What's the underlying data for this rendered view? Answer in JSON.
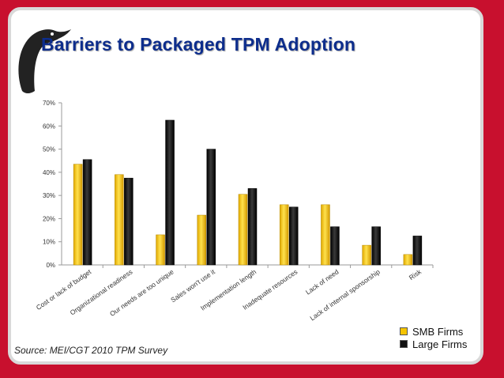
{
  "slide": {
    "title": "Barriers to Packaged TPM Adoption",
    "source": "Source:  MEI/CGT 2010 TPM Survey"
  },
  "colors": {
    "background": "#c8102e",
    "title": "#0d2d8c",
    "smb": "#f5c400",
    "large": "#111111"
  },
  "logo": {
    "icon": "penguin-logo-icon"
  },
  "chart_data": {
    "type": "bar",
    "title": "",
    "xlabel": "",
    "ylabel": "",
    "ylim": [
      0,
      70
    ],
    "y_ticks": [
      "0%",
      "10%",
      "20%",
      "30%",
      "40%",
      "50%",
      "60%",
      "70%"
    ],
    "categories": [
      "Cost or lack of budget",
      "Organizational readiness",
      "Our needs are too unique",
      "Sales won't use it",
      "Implementation length",
      "Inadequate resources",
      "Lack of need",
      "Lack of internal sponsorship",
      "Risk"
    ],
    "series": [
      {
        "name": "SMB Firms",
        "values": [
          43.5,
          39,
          13,
          21.5,
          30.5,
          26,
          26,
          8.5,
          4.5
        ]
      },
      {
        "name": "Large Firms",
        "values": [
          45.5,
          37.5,
          62.5,
          50,
          33,
          25,
          16.5,
          16.5,
          12.5
        ]
      }
    ],
    "grid": false,
    "legend": "bottom-right"
  }
}
